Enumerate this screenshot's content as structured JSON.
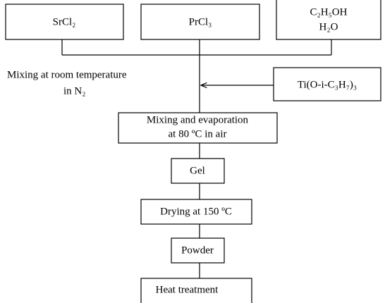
{
  "nodes": [
    {
      "label": "SrCl₂"
    },
    {
      "label": "PrCl₃"
    },
    {
      "lines": [
        "C₂H₅OH",
        "H₂O"
      ]
    },
    {
      "lines": [
        "Mixing at room temperature",
        "in N₂"
      ]
    },
    {
      "label": "Ti(O-i-C₃H₇)₃"
    },
    {
      "lines": [
        "Mixing and evaporation",
        "at 80 ºC in air"
      ]
    },
    {
      "label": "Gel"
    },
    {
      "label": "Drying at 150 ºC"
    },
    {
      "label": "Powder"
    },
    {
      "label": "Heat treatment"
    }
  ]
}
